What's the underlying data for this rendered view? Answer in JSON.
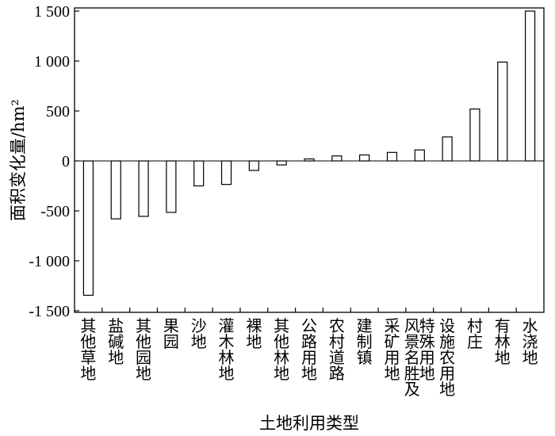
{
  "chart_data": {
    "type": "bar",
    "xlabel": "土地利用类型",
    "ylabel": "面积变化量/hm²",
    "ylim": [
      -1500,
      1500
    ],
    "yticks": [
      1500,
      1000,
      500,
      0,
      -500,
      -1000,
      -1500
    ],
    "ytick_labels": [
      "1 500",
      "1 000",
      "500",
      "0",
      "-500",
      "-1 000",
      "-1 500"
    ],
    "grid": false,
    "categories": [
      [
        "其他草地"
      ],
      [
        "盐碱地"
      ],
      [
        "其他园地"
      ],
      [
        "果园"
      ],
      [
        "沙地"
      ],
      [
        "灌木林地"
      ],
      [
        "裸地"
      ],
      [
        "其他林地"
      ],
      [
        "公路用地"
      ],
      [
        "农村道路"
      ],
      [
        "建制镇"
      ],
      [
        "采矿用地"
      ],
      [
        "风景名胜及",
        "特殊用地"
      ],
      [
        "设施农用地"
      ],
      [
        "村庄"
      ],
      [
        "有林地"
      ],
      [
        "水浇地"
      ]
    ],
    "values": [
      -1345,
      -580,
      -555,
      -515,
      -250,
      -235,
      -95,
      -40,
      20,
      50,
      60,
      85,
      110,
      240,
      520,
      990,
      1500
    ]
  }
}
